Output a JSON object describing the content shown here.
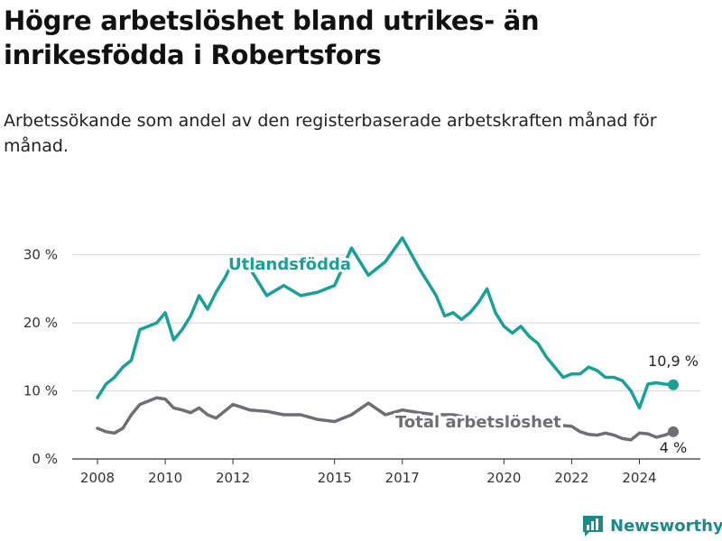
{
  "title": "Högre arbetslöshet bland utrikes- än inrikesfödda i Robertsfors",
  "subtitle": "Arbetssökande som andel av den registerbaserade arbetskraften månad för månad.",
  "brand": "Newsworthy",
  "colors": {
    "foreign": "#18a196",
    "total": "#6e6e73",
    "grid": "#d8d8d8",
    "axis": "#333333"
  },
  "chart_data": {
    "type": "line",
    "x_ticks": [
      "2008",
      "2010",
      "2012",
      "2015",
      "2017",
      "2020",
      "2022",
      "2024"
    ],
    "y_ticks": [
      "0 %",
      "10 %",
      "20 %",
      "30 %"
    ],
    "ylim": [
      0,
      33
    ],
    "xlim": [
      2007.8,
      2025.2
    ],
    "grid": true,
    "series": [
      {
        "name": "Utlandsfödda",
        "color": "#18a196",
        "end_label": "10,9 %",
        "x": [
          2008.0,
          2008.25,
          2008.5,
          2008.75,
          2009.0,
          2009.25,
          2009.5,
          2009.75,
          2010.0,
          2010.25,
          2010.5,
          2010.75,
          2011.0,
          2011.25,
          2011.5,
          2011.75,
          2012.0,
          2012.5,
          2013.0,
          2013.5,
          2014.0,
          2014.5,
          2015.0,
          2015.5,
          2016.0,
          2016.5,
          2017.0,
          2017.5,
          2018.0,
          2018.25,
          2018.5,
          2018.75,
          2019.0,
          2019.25,
          2019.5,
          2019.75,
          2020.0,
          2020.25,
          2020.5,
          2020.75,
          2021.0,
          2021.25,
          2021.5,
          2021.75,
          2022.0,
          2022.25,
          2022.5,
          2022.75,
          2023.0,
          2023.25,
          2023.5,
          2023.75,
          2024.0,
          2024.25,
          2024.5,
          2024.75,
          2025.0
        ],
        "values": [
          9.0,
          11.0,
          12.0,
          13.5,
          14.5,
          19.0,
          19.5,
          20.0,
          21.5,
          17.5,
          19.0,
          21.0,
          24.0,
          22.0,
          24.5,
          26.5,
          29.0,
          28.0,
          24.0,
          25.5,
          24.0,
          24.5,
          25.5,
          31.0,
          27.0,
          29.0,
          32.5,
          28.0,
          24.0,
          21.0,
          21.5,
          20.5,
          21.5,
          23.0,
          25.0,
          21.5,
          19.5,
          18.5,
          19.5,
          18.0,
          17.0,
          15.0,
          13.5,
          12.0,
          12.5,
          12.5,
          13.5,
          13.0,
          12.0,
          12.0,
          11.5,
          10.0,
          7.5,
          11.0,
          11.2,
          11.0,
          10.9
        ]
      },
      {
        "name": "Total arbetslöshet",
        "color": "#6e6e73",
        "end_label": "4 %",
        "x": [
          2008.0,
          2008.25,
          2008.5,
          2008.75,
          2009.0,
          2009.25,
          2009.5,
          2009.75,
          2010.0,
          2010.25,
          2010.5,
          2010.75,
          2011.0,
          2011.25,
          2011.5,
          2011.75,
          2012.0,
          2012.5,
          2013.0,
          2013.5,
          2014.0,
          2014.5,
          2015.0,
          2015.5,
          2016.0,
          2016.5,
          2017.0,
          2017.5,
          2018.0,
          2018.5,
          2019.0,
          2019.5,
          2020.0,
          2020.5,
          2021.0,
          2021.5,
          2022.0,
          2022.25,
          2022.5,
          2022.75,
          2023.0,
          2023.25,
          2023.5,
          2023.75,
          2024.0,
          2024.25,
          2024.5,
          2024.75,
          2025.0
        ],
        "values": [
          4.5,
          4.0,
          3.8,
          4.5,
          6.5,
          8.0,
          8.5,
          9.0,
          8.8,
          7.5,
          7.2,
          6.8,
          7.5,
          6.5,
          6.0,
          7.0,
          8.0,
          7.2,
          7.0,
          6.5,
          6.5,
          5.8,
          5.5,
          6.5,
          8.2,
          6.5,
          7.2,
          6.8,
          6.5,
          6.5,
          6.0,
          6.0,
          5.5,
          5.3,
          5.2,
          5.0,
          4.8,
          4.0,
          3.6,
          3.5,
          3.8,
          3.5,
          3.0,
          2.8,
          3.8,
          3.7,
          3.2,
          3.5,
          4.0
        ]
      }
    ]
  }
}
